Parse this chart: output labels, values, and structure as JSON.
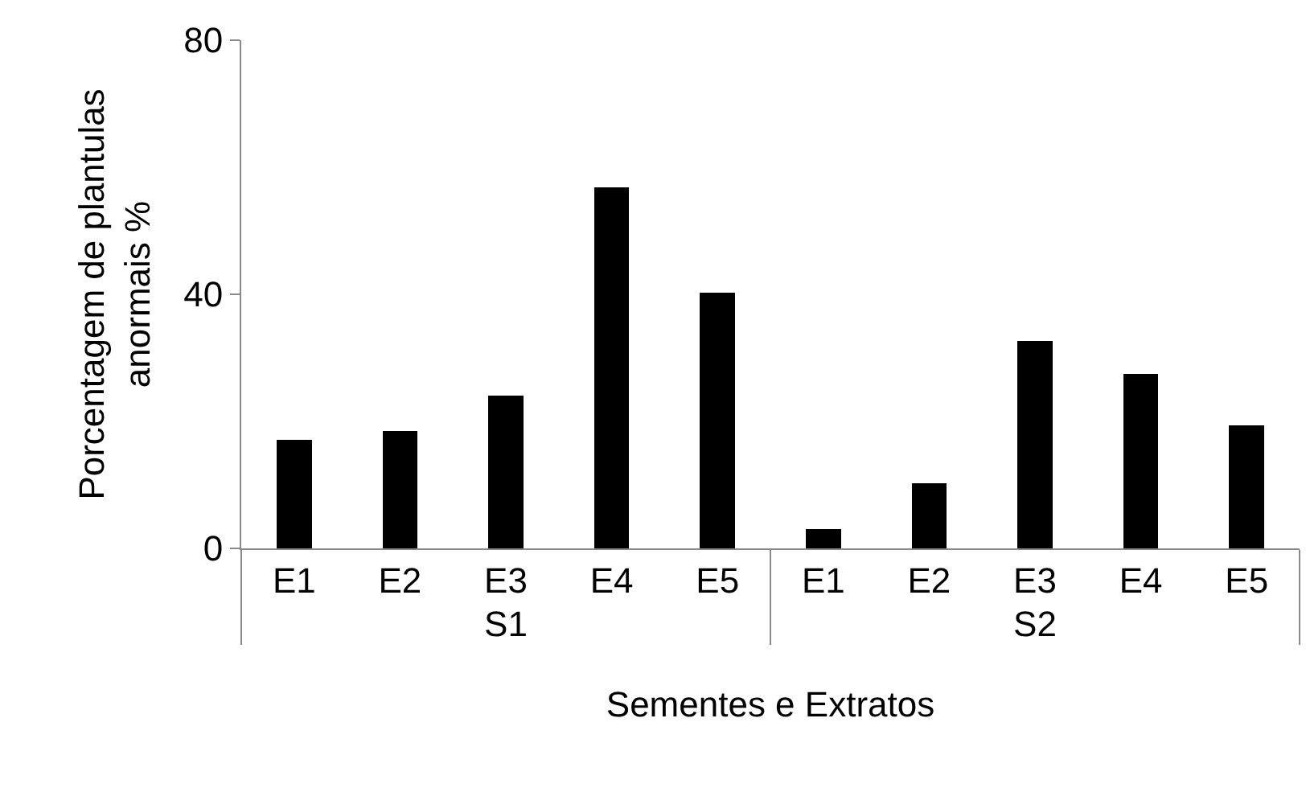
{
  "chart_data": {
    "type": "bar",
    "xlabel": "Sementes e Extratos",
    "ylabel": "Porcentagem de plantulas\nanormais %",
    "categories": [
      "E1",
      "E2",
      "E3",
      "E4",
      "E5",
      "E1",
      "E2",
      "E3",
      "E4",
      "E5"
    ],
    "annotations": [
      "S1",
      "S2"
    ],
    "values": [
      17.1,
      18.5,
      24.1,
      56.9,
      40.2,
      3.0,
      10.3,
      32.6,
      27.5,
      19.4
    ],
    "color": "#000000",
    "ylim": [
      0,
      80
    ],
    "yticks": [
      0,
      40,
      80
    ],
    "grid": false
  }
}
